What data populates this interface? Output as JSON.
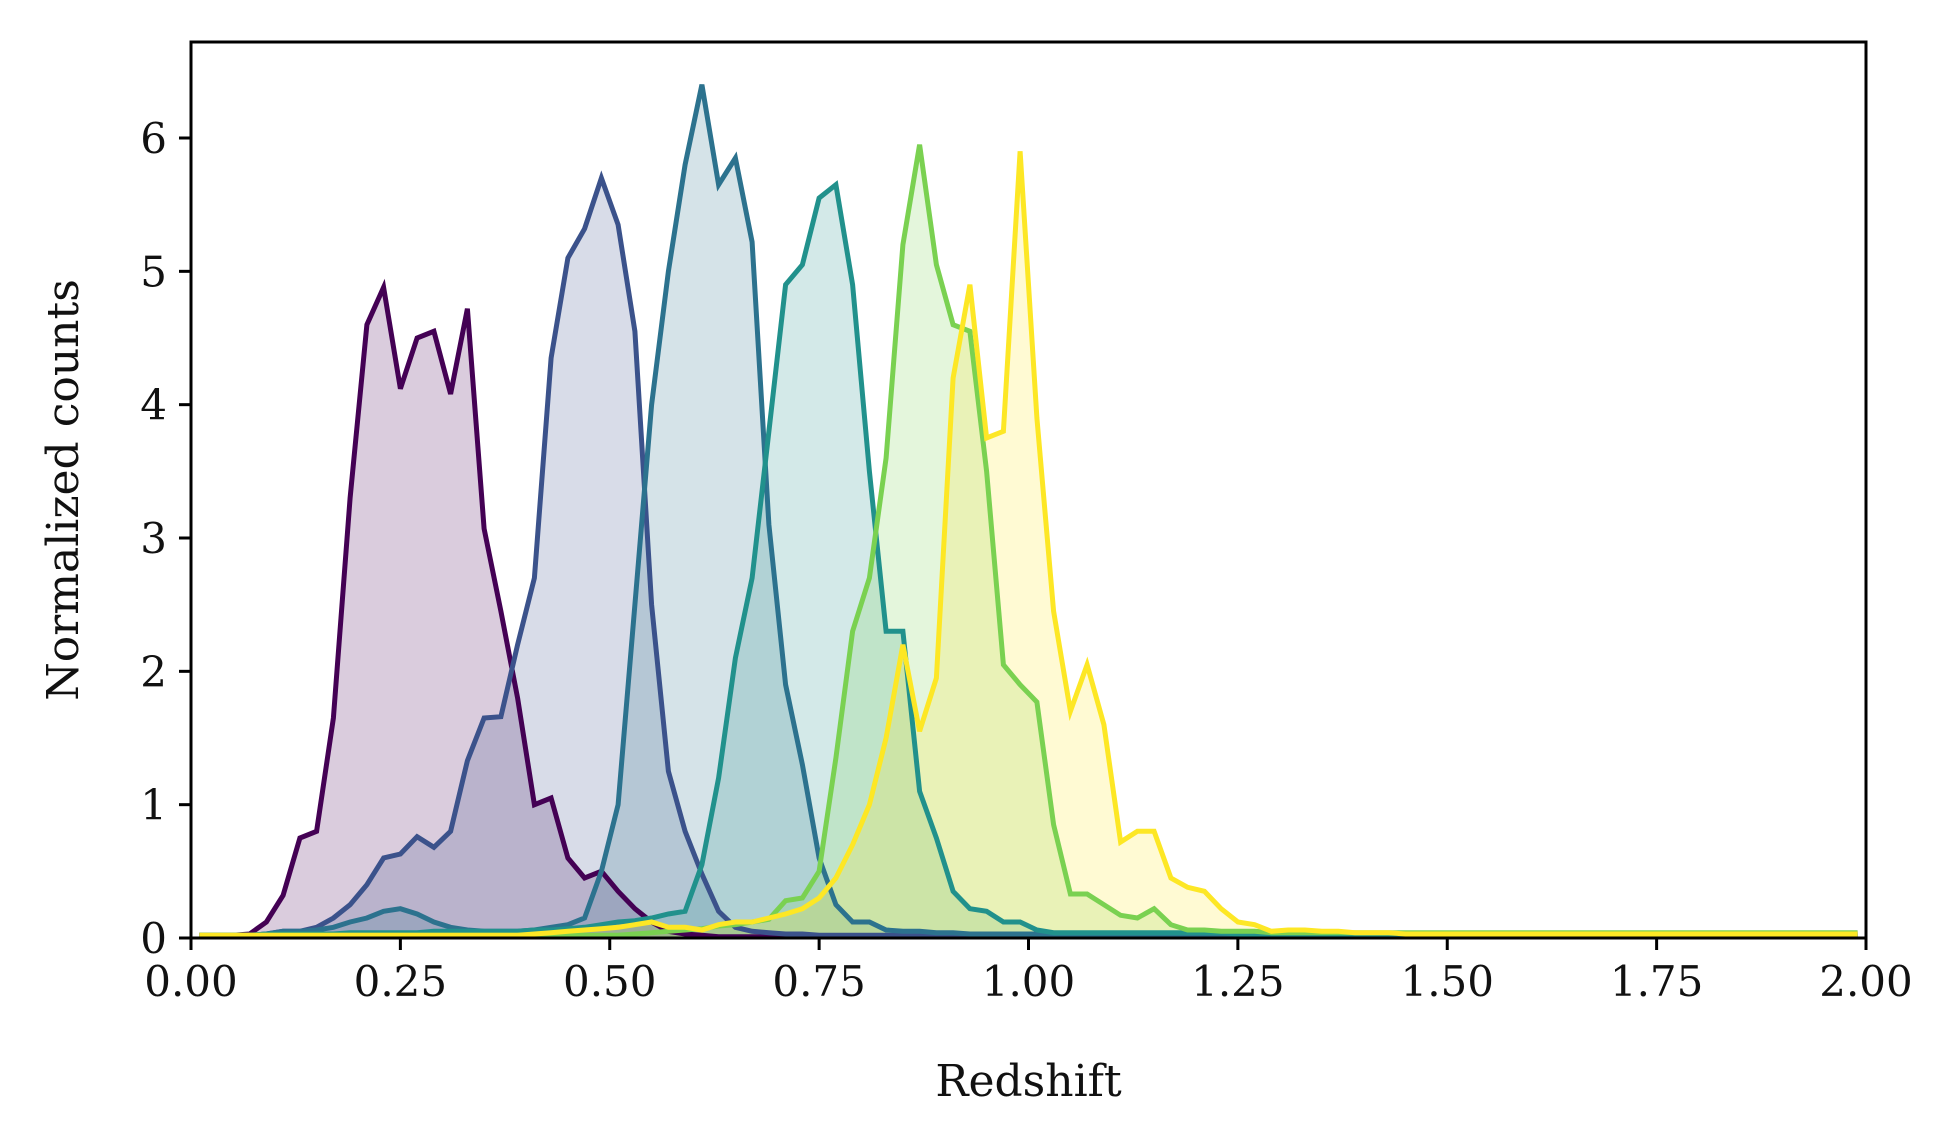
{
  "chart_data": {
    "type": "area",
    "xlabel": "Redshift",
    "ylabel": "Normalized counts",
    "xlim": [
      0.0,
      2.0
    ],
    "ylim": [
      0,
      6.72
    ],
    "xticks": [
      0.0,
      0.25,
      0.5,
      0.75,
      1.0,
      1.25,
      1.5,
      1.75,
      2.0
    ],
    "xtick_labels": [
      "0.00",
      "0.25",
      "0.50",
      "0.75",
      "1.00",
      "1.25",
      "1.50",
      "1.75",
      "2.00"
    ],
    "yticks": [
      0,
      1,
      2,
      3,
      4,
      5,
      6
    ],
    "ytick_labels": [
      "0",
      "1",
      "2",
      "3",
      "4",
      "5",
      "6"
    ],
    "grid": false,
    "x": [
      0.01,
      0.03,
      0.05,
      0.07,
      0.09,
      0.11,
      0.13,
      0.15,
      0.17,
      0.19,
      0.21,
      0.23,
      0.25,
      0.27,
      0.29,
      0.31,
      0.33,
      0.35,
      0.37,
      0.39,
      0.41,
      0.43,
      0.45,
      0.47,
      0.49,
      0.51,
      0.53,
      0.55,
      0.57,
      0.59,
      0.61,
      0.63,
      0.65,
      0.67,
      0.69,
      0.71,
      0.73,
      0.75,
      0.77,
      0.79,
      0.81,
      0.83,
      0.85,
      0.87,
      0.89,
      0.91,
      0.93,
      0.95,
      0.97,
      0.99,
      1.01,
      1.03,
      1.05,
      1.07,
      1.09,
      1.11,
      1.13,
      1.15,
      1.17,
      1.19,
      1.21,
      1.23,
      1.25,
      1.27,
      1.29,
      1.31,
      1.33,
      1.35,
      1.37,
      1.39,
      1.41,
      1.43,
      1.45,
      1.47,
      1.49,
      1.51,
      1.53,
      1.55,
      1.57,
      1.59,
      1.61,
      1.63,
      1.65,
      1.67,
      1.69,
      1.71,
      1.73,
      1.75,
      1.77,
      1.79,
      1.81,
      1.83,
      1.85,
      1.87,
      1.89,
      1.91,
      1.93,
      1.95,
      1.97,
      1.99
    ],
    "series": [
      {
        "color": "#440154",
        "fill_alpha": 0.2,
        "values": [
          0.02,
          0.02,
          0.02,
          0.03,
          0.12,
          0.32,
          0.75,
          0.8,
          1.65,
          3.3,
          4.6,
          4.88,
          4.12,
          4.5,
          4.55,
          4.08,
          4.72,
          3.07,
          2.45,
          1.8,
          1.0,
          1.05,
          0.6,
          0.45,
          0.5,
          0.35,
          0.22,
          0.12,
          0.05,
          0.03,
          0.02,
          0.01,
          0.01,
          0.01,
          0.01,
          0.01,
          0.01,
          0.01,
          0.01,
          0.01,
          0.01,
          0.01,
          0.01,
          0.01,
          0.01,
          0.01,
          0.01,
          0.01,
          0.01,
          0.01,
          0.01,
          0.01,
          0.01,
          0.01,
          0.01,
          0.01,
          0.01,
          0.01,
          0.01,
          0.01,
          0.01,
          0.01,
          0.01,
          0.01,
          0.01,
          0.01,
          0.01,
          0.01,
          0.01,
          0.01,
          0.01,
          0.01,
          0.01,
          0.01,
          0.01,
          0.01,
          0.01,
          0.01,
          0.01,
          0.01,
          0.01,
          0.01,
          0.01,
          0.01,
          0.01,
          0.01,
          0.01,
          0.01,
          0.01,
          0.01,
          0.01,
          0.01,
          0.01,
          0.01,
          0.01,
          0.01,
          0.01,
          0.01,
          0.01,
          0.01
        ]
      },
      {
        "color": "#3b528b",
        "fill_alpha": 0.2,
        "values": [
          0.02,
          0.02,
          0.02,
          0.02,
          0.03,
          0.05,
          0.05,
          0.08,
          0.15,
          0.25,
          0.4,
          0.6,
          0.63,
          0.76,
          0.68,
          0.8,
          1.33,
          1.65,
          1.66,
          2.2,
          2.7,
          4.35,
          5.1,
          5.32,
          5.7,
          5.35,
          4.55,
          2.5,
          1.25,
          0.8,
          0.48,
          0.2,
          0.08,
          0.05,
          0.04,
          0.03,
          0.03,
          0.02,
          0.02,
          0.02,
          0.02,
          0.02,
          0.02,
          0.02,
          0.02,
          0.02,
          0.02,
          0.02,
          0.02,
          0.02,
          0.02,
          0.02,
          0.02,
          0.02,
          0.02,
          0.02,
          0.02,
          0.02,
          0.02,
          0.02,
          0.02,
          0.02,
          0.02,
          0.02,
          0.02,
          0.02,
          0.02,
          0.02,
          0.02,
          0.02,
          0.02,
          0.02,
          0.02,
          0.02,
          0.02,
          0.02,
          0.02,
          0.02,
          0.02,
          0.02,
          0.02,
          0.02,
          0.02,
          0.02,
          0.02,
          0.02,
          0.02,
          0.02,
          0.02,
          0.02,
          0.02,
          0.02,
          0.02,
          0.02,
          0.02,
          0.02,
          0.02,
          0.02,
          0.02,
          0.02
        ]
      },
      {
        "color": "#2c728e",
        "fill_alpha": 0.2,
        "values": [
          0.02,
          0.02,
          0.02,
          0.02,
          0.03,
          0.05,
          0.05,
          0.06,
          0.08,
          0.12,
          0.15,
          0.2,
          0.22,
          0.18,
          0.12,
          0.08,
          0.06,
          0.05,
          0.05,
          0.05,
          0.06,
          0.08,
          0.1,
          0.15,
          0.5,
          1.0,
          2.5,
          4.0,
          5.0,
          5.8,
          6.4,
          5.65,
          5.85,
          5.22,
          3.1,
          1.9,
          1.3,
          0.6,
          0.25,
          0.12,
          0.12,
          0.06,
          0.05,
          0.05,
          0.04,
          0.04,
          0.03,
          0.03,
          0.03,
          0.03,
          0.03,
          0.03,
          0.03,
          0.03,
          0.03,
          0.03,
          0.03,
          0.03,
          0.03,
          0.03,
          0.03,
          0.03,
          0.03,
          0.03,
          0.03,
          0.03,
          0.03,
          0.03,
          0.03,
          0.03,
          0.03,
          0.03,
          0.03,
          0.03,
          0.03,
          0.03,
          0.03,
          0.03,
          0.03,
          0.03,
          0.03,
          0.03,
          0.03,
          0.03,
          0.03,
          0.03,
          0.03,
          0.03,
          0.03,
          0.03,
          0.03,
          0.03,
          0.03,
          0.03,
          0.03,
          0.03,
          0.03,
          0.03,
          0.03,
          0.03
        ]
      },
      {
        "color": "#21918c",
        "fill_alpha": 0.2,
        "values": [
          0.02,
          0.02,
          0.02,
          0.02,
          0.03,
          0.03,
          0.03,
          0.03,
          0.03,
          0.04,
          0.04,
          0.04,
          0.04,
          0.04,
          0.05,
          0.05,
          0.05,
          0.05,
          0.05,
          0.05,
          0.06,
          0.06,
          0.07,
          0.08,
          0.1,
          0.12,
          0.13,
          0.15,
          0.18,
          0.2,
          0.55,
          1.2,
          2.1,
          2.7,
          3.8,
          4.9,
          5.05,
          5.55,
          5.65,
          4.9,
          3.5,
          2.3,
          2.3,
          1.1,
          0.75,
          0.35,
          0.22,
          0.2,
          0.12,
          0.12,
          0.06,
          0.04,
          0.04,
          0.04,
          0.04,
          0.04,
          0.04,
          0.04,
          0.04,
          0.04,
          0.04,
          0.04,
          0.03,
          0.03,
          0.03,
          0.03,
          0.03,
          0.03,
          0.03,
          0.03,
          0.03,
          0.03,
          0.03,
          0.03,
          0.03,
          0.03,
          0.03,
          0.03,
          0.03,
          0.03,
          0.03,
          0.03,
          0.03,
          0.03,
          0.03,
          0.03,
          0.03,
          0.03,
          0.03,
          0.03,
          0.03,
          0.03,
          0.03,
          0.03,
          0.03,
          0.03,
          0.03,
          0.03,
          0.03,
          0.03
        ]
      },
      {
        "color": "#7ad151",
        "fill_alpha": 0.2,
        "values": [
          0.02,
          0.02,
          0.02,
          0.02,
          0.02,
          0.02,
          0.02,
          0.02,
          0.02,
          0.02,
          0.02,
          0.02,
          0.02,
          0.02,
          0.02,
          0.02,
          0.02,
          0.02,
          0.02,
          0.02,
          0.02,
          0.02,
          0.02,
          0.02,
          0.02,
          0.02,
          0.03,
          0.04,
          0.05,
          0.06,
          0.07,
          0.09,
          0.1,
          0.12,
          0.14,
          0.28,
          0.3,
          0.5,
          1.35,
          2.3,
          2.7,
          3.6,
          5.2,
          5.95,
          5.05,
          4.6,
          4.55,
          3.5,
          2.05,
          1.9,
          1.77,
          0.85,
          0.33,
          0.33,
          0.25,
          0.17,
          0.15,
          0.22,
          0.1,
          0.06,
          0.06,
          0.05,
          0.05,
          0.05,
          0.04,
          0.04,
          0.04,
          0.04,
          0.04,
          0.04,
          0.04,
          0.04,
          0.04,
          0.04,
          0.04,
          0.04,
          0.04,
          0.04,
          0.04,
          0.04,
          0.04,
          0.04,
          0.04,
          0.04,
          0.04,
          0.04,
          0.04,
          0.04,
          0.04,
          0.04,
          0.04,
          0.04,
          0.04,
          0.04,
          0.04,
          0.04,
          0.04,
          0.04,
          0.04,
          0.04
        ]
      },
      {
        "color": "#fde725",
        "fill_alpha": 0.2,
        "values": [
          0.02,
          0.02,
          0.02,
          0.02,
          0.02,
          0.02,
          0.02,
          0.02,
          0.02,
          0.02,
          0.02,
          0.02,
          0.02,
          0.02,
          0.02,
          0.02,
          0.02,
          0.02,
          0.02,
          0.02,
          0.03,
          0.04,
          0.05,
          0.06,
          0.07,
          0.08,
          0.1,
          0.12,
          0.08,
          0.08,
          0.06,
          0.1,
          0.12,
          0.12,
          0.15,
          0.18,
          0.22,
          0.3,
          0.45,
          0.7,
          1.0,
          1.5,
          2.2,
          1.55,
          1.95,
          4.2,
          4.9,
          3.75,
          3.8,
          5.9,
          3.9,
          2.45,
          1.7,
          2.05,
          1.6,
          0.72,
          0.8,
          0.8,
          0.45,
          0.38,
          0.35,
          0.22,
          0.12,
          0.1,
          0.05,
          0.06,
          0.06,
          0.05,
          0.05,
          0.04,
          0.04,
          0.04,
          0.03,
          0.03,
          0.03,
          0.03,
          0.03,
          0.03,
          0.03,
          0.03,
          0.03,
          0.03,
          0.03,
          0.03,
          0.03,
          0.03,
          0.03,
          0.03,
          0.03,
          0.03,
          0.03,
          0.03,
          0.03,
          0.03,
          0.03,
          0.03,
          0.03,
          0.03,
          0.03,
          0.03
        ]
      }
    ]
  }
}
